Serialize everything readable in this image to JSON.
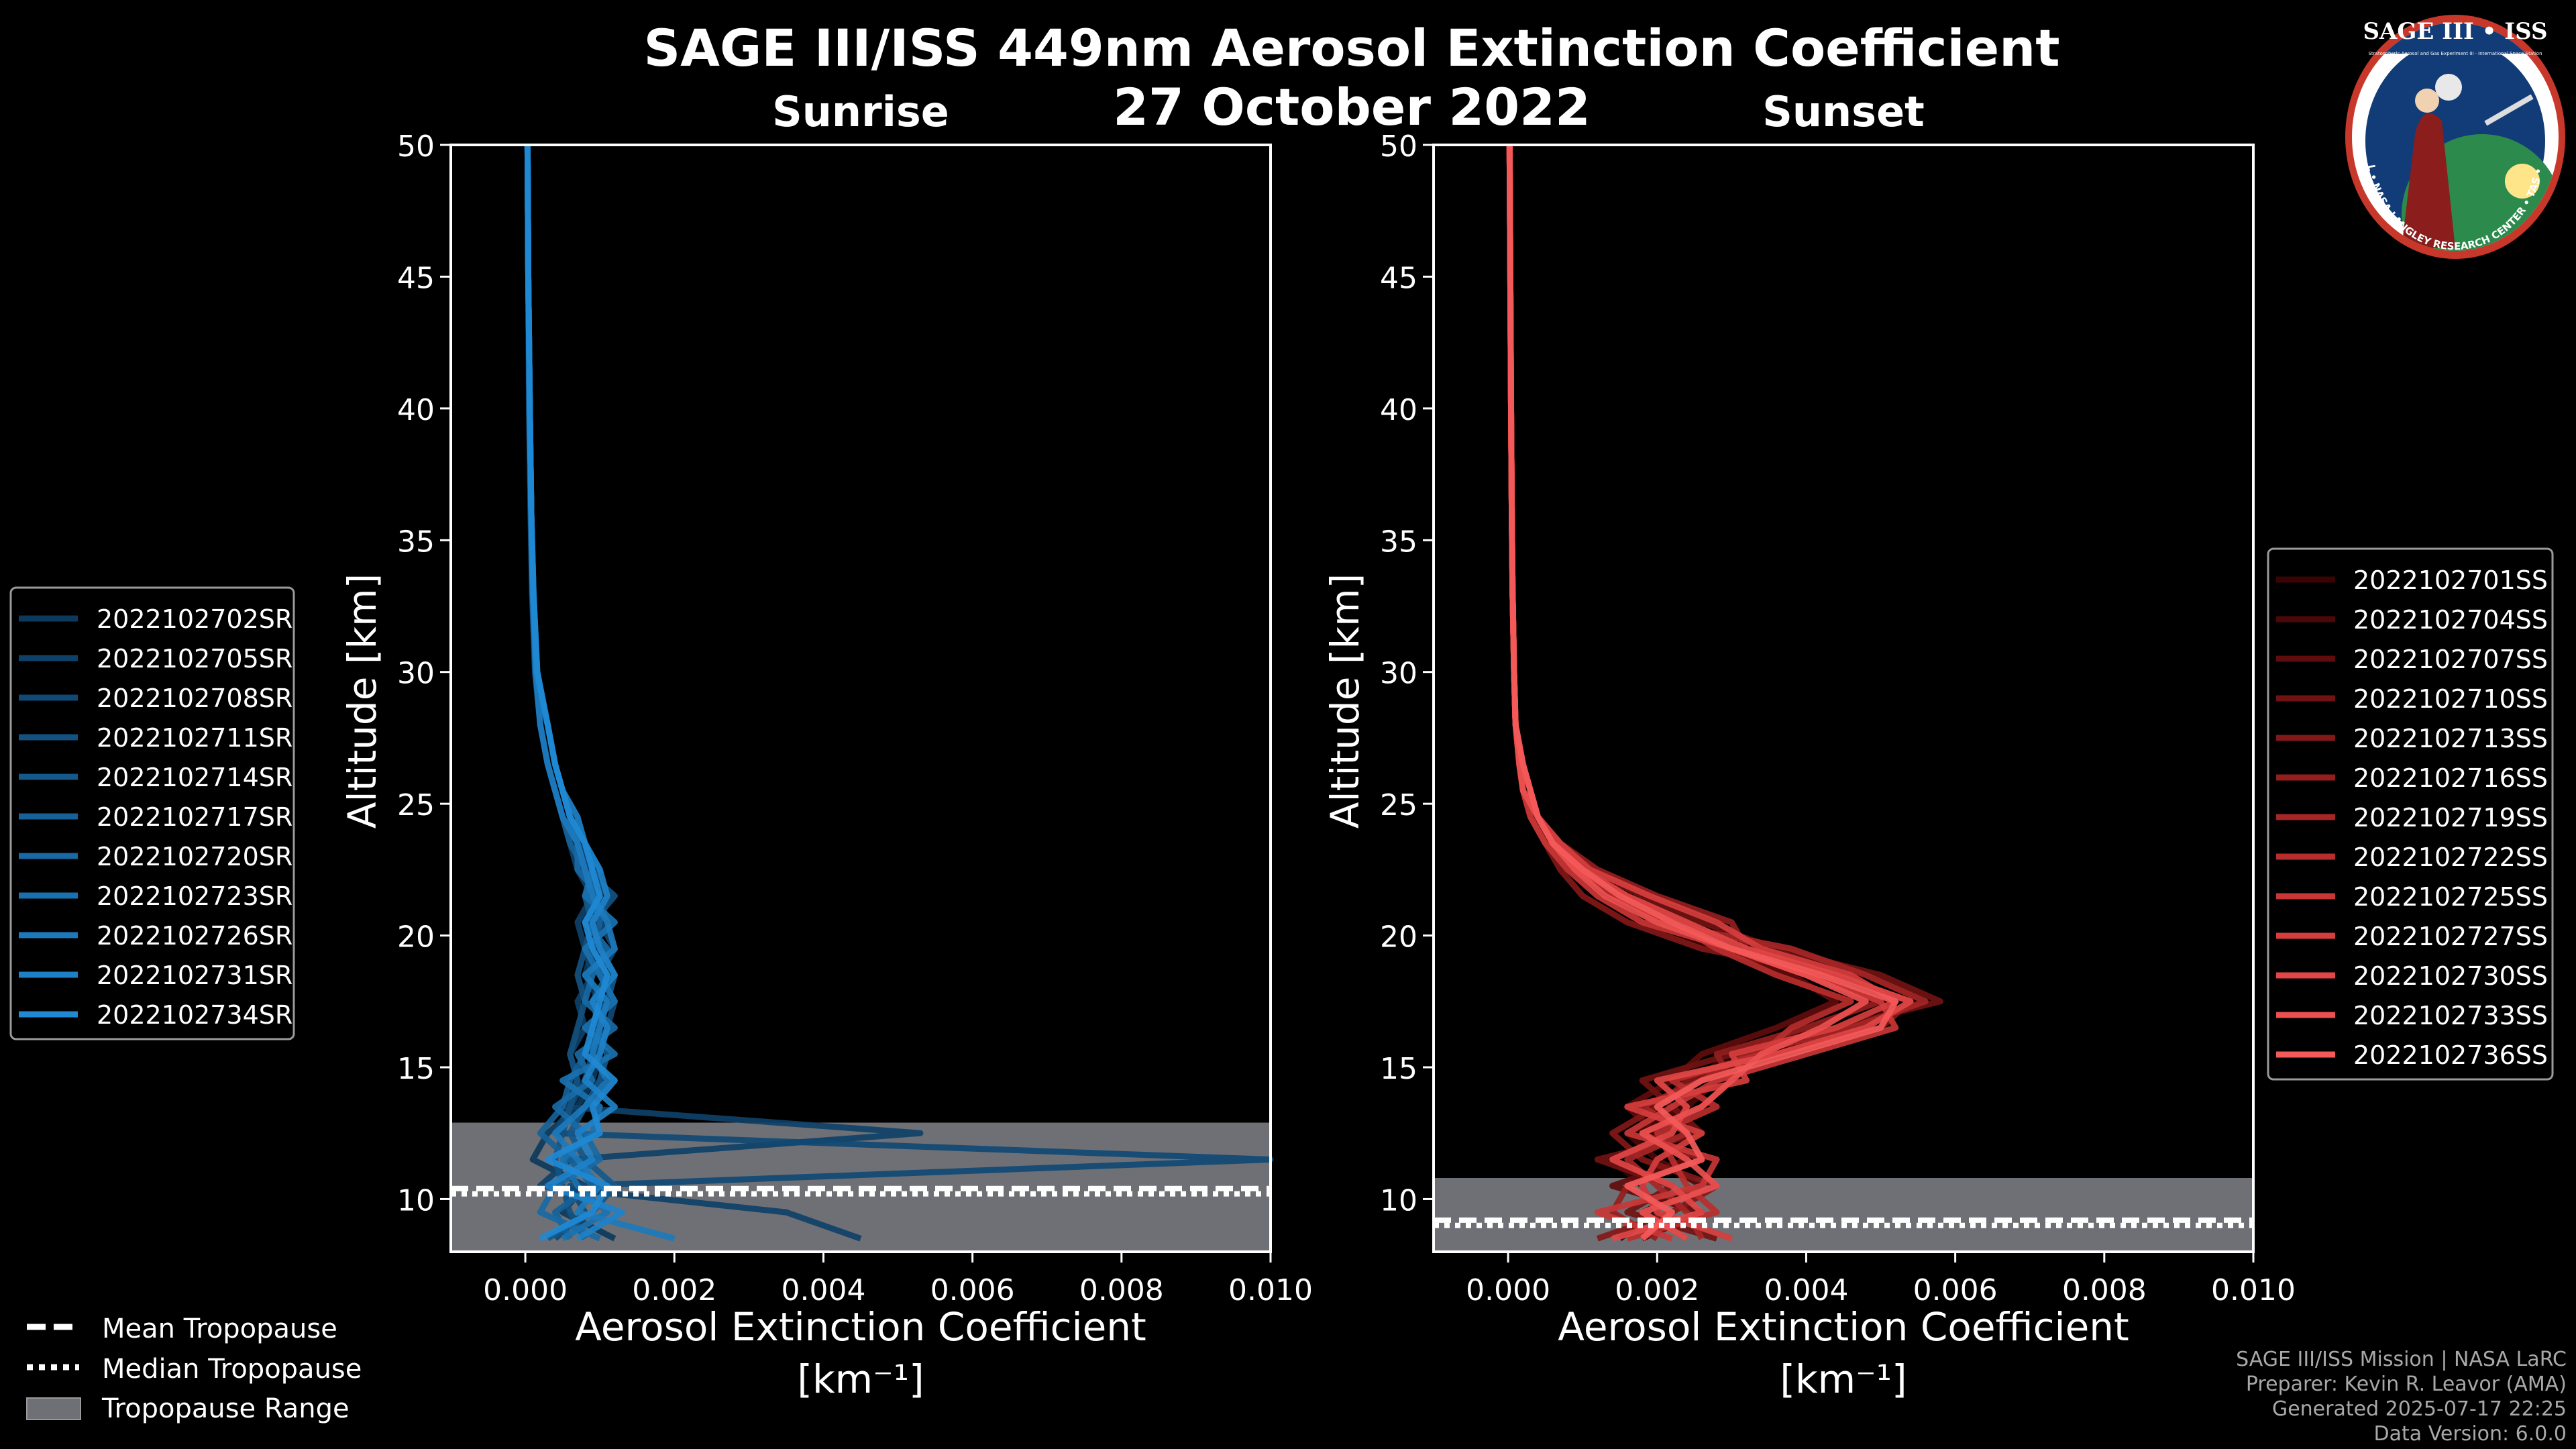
{
  "header": {
    "title": "SAGE III/ISS 449nm Aerosol Extinction Coefficient",
    "date": "27 October 2022"
  },
  "badge": {
    "name": "SAGE III • ISS",
    "ring_text": "BALL • NASA LANGLEY RESEARCH CENTER • TAS • ESA",
    "small_text": "Stratospheric Aerosol and Gas Experiment III · International Space Station"
  },
  "footer": {
    "line1": "SAGE III/ISS Mission | NASA LaRC",
    "line2": "Preparer: Kevin R. Leavor (AMA)",
    "line3": "Generated 2025-07-17 22:25",
    "line4": "Data Version: 6.0.0"
  },
  "tropopause_legend": [
    {
      "label": "Mean Tropopause",
      "style": "dashed"
    },
    {
      "label": "Median Tropopause",
      "style": "dotted"
    },
    {
      "label": "Tropopause Range",
      "style": "patch"
    }
  ],
  "colors": {
    "background": "#000000",
    "tropopause_range": "#6e7075",
    "sunrise_series": [
      "#0c3a5c",
      "#0e4168",
      "#104974",
      "#125180",
      "#14598c",
      "#166198",
      "#1869a4",
      "#1a71b0",
      "#1c79bc",
      "#1e81c8",
      "#2089d4"
    ],
    "sunset_series": [
      "#3a0404",
      "#4c0808",
      "#5e0c0c",
      "#701212",
      "#821818",
      "#941e1e",
      "#a62626",
      "#b82e2e",
      "#c83636",
      "#d63e3e",
      "#e24646",
      "#ec5050",
      "#f45a5a"
    ]
  },
  "chart_data": [
    {
      "type": "line",
      "title": "Sunrise",
      "xlabel": "Aerosol Extinction Coefficient",
      "xunit": "[km⁻¹]",
      "ylabel": "Altitude [km]",
      "xlim": [
        -0.001,
        0.01
      ],
      "ylim": [
        8,
        50
      ],
      "xticks": [
        "0.000",
        "0.002",
        "0.004",
        "0.006",
        "0.008",
        "0.010"
      ],
      "xtick_values": [
        0,
        0.002,
        0.004,
        0.006,
        0.008,
        0.01
      ],
      "yticks": [
        10,
        15,
        20,
        25,
        30,
        35,
        40,
        45,
        50
      ],
      "tropopause": {
        "mean": 10.4,
        "median": 10.2,
        "range": [
          8,
          12.9
        ]
      },
      "legend_position": "left",
      "altitudes": [
        8.5,
        9.5,
        10.5,
        11.5,
        12.5,
        13.5,
        14.5,
        15.5,
        16.5,
        17.5,
        18.5,
        19.5,
        20.5,
        21.5,
        22.5,
        23.5,
        24.5,
        25.5,
        26.5,
        28,
        30,
        33,
        36,
        40,
        45,
        50
      ],
      "series": [
        {
          "name": "2022102702SR",
          "values": [
            0.0012,
            0.0005,
            0.0008,
            0.0001,
            0.0003,
            0.0007,
            0.0009,
            0.001,
            0.0009,
            0.001,
            0.0008,
            0.0009,
            0.0011,
            0.001,
            0.0009,
            0.0008,
            0.0006,
            0.0005,
            0.0004,
            0.0003,
            0.00015,
            0.0001,
            8e-05,
            6e-05,
            4e-05,
            3e-05
          ]
        },
        {
          "name": "2022102705SR",
          "values": [
            0.0045,
            0.0035,
            0.0002,
            0.0006,
            0.0053,
            0.0005,
            0.0007,
            0.0006,
            0.0008,
            0.0007,
            0.0009,
            0.0008,
            0.0007,
            0.0009,
            0.0007,
            0.0006,
            0.0005,
            0.0004,
            0.0003,
            0.0002,
            0.00014,
            0.0001,
            8e-05,
            6e-05,
            4e-05,
            3e-05
          ]
        },
        {
          "name": "2022102708SR",
          "values": [
            0.0004,
            0.0008,
            0.0006,
            0.01,
            0.0004,
            0.0006,
            0.0008,
            0.0009,
            0.0011,
            0.0012,
            0.001,
            0.0012,
            0.001,
            0.0011,
            0.0009,
            0.0007,
            0.0006,
            0.0005,
            0.0004,
            0.0003,
            0.00015,
            0.0001,
            8e-05,
            6e-05,
            4e-05,
            3e-05
          ]
        },
        {
          "name": "2022102711SR",
          "values": [
            0.0008,
            0.0006,
            0.0005,
            0.0004,
            0.0005,
            0.0006,
            0.0007,
            0.0006,
            0.0007,
            0.0008,
            0.0007,
            0.0008,
            0.0009,
            0.0012,
            0.0008,
            0.0007,
            0.0005,
            0.0004,
            0.0003,
            0.0002,
            0.00013,
            9e-05,
            7e-05,
            5e-05,
            4e-05,
            3e-05
          ]
        },
        {
          "name": "2022102714SR",
          "values": [
            0.0003,
            0.0009,
            0.0012,
            0.0008,
            0.0006,
            0.0008,
            0.001,
            0.0011,
            0.0009,
            0.0011,
            0.0012,
            0.001,
            0.0009,
            0.0008,
            0.001,
            0.0008,
            0.0006,
            0.0005,
            0.0004,
            0.0003,
            0.00016,
            0.00011,
            8e-05,
            6e-05,
            4e-05,
            3e-05
          ]
        },
        {
          "name": "2022102717SR",
          "values": [
            0.0006,
            0.0004,
            0.0009,
            0.0006,
            0.0002,
            0.0005,
            0.0006,
            0.0008,
            0.001,
            0.0009,
            0.0011,
            0.0009,
            0.001,
            0.0009,
            0.0008,
            0.0006,
            0.0005,
            0.0004,
            0.0003,
            0.0002,
            0.00014,
            0.0001,
            8e-05,
            6e-05,
            4e-05,
            3e-05
          ]
        },
        {
          "name": "2022102720SR",
          "values": [
            0.001,
            0.0002,
            0.0004,
            0.001,
            0.0008,
            0.0004,
            0.0009,
            0.0007,
            0.0012,
            0.0008,
            0.0009,
            0.0011,
            0.0008,
            0.001,
            0.0007,
            0.0007,
            0.0006,
            0.0005,
            0.0004,
            0.0003,
            0.00015,
            0.0001,
            8e-05,
            6e-05,
            4e-05,
            3e-05
          ]
        },
        {
          "name": "2022102723SR",
          "values": [
            0.0005,
            0.0011,
            0.0007,
            0.0005,
            0.0009,
            0.001,
            0.0005,
            0.0012,
            0.0008,
            0.0012,
            0.001,
            0.0008,
            0.0012,
            0.0008,
            0.0009,
            0.0008,
            0.0006,
            0.0005,
            0.0004,
            0.0003,
            0.00016,
            0.00011,
            8e-05,
            6e-05,
            4e-05,
            3e-05
          ]
        },
        {
          "name": "2022102726SR",
          "values": [
            0.002,
            0.0007,
            0.001,
            0.0007,
            0.0004,
            0.0008,
            0.0011,
            0.0009,
            0.001,
            0.0011,
            0.0008,
            0.0012,
            0.0011,
            0.0009,
            0.0008,
            0.0007,
            0.0005,
            0.0004,
            0.0003,
            0.0002,
            0.00014,
            0.0001,
            8e-05,
            6e-05,
            4e-05,
            3e-05
          ]
        },
        {
          "name": "2022102731SR",
          "values": [
            0.0007,
            0.0013,
            0.0003,
            0.0009,
            0.0007,
            0.0012,
            0.0008,
            0.001,
            0.0011,
            0.0009,
            0.0012,
            0.001,
            0.0009,
            0.0011,
            0.001,
            0.0008,
            0.0007,
            0.0005,
            0.0004,
            0.0003,
            0.00015,
            0.0001,
            8e-05,
            6e-05,
            4e-05,
            3e-05
          ]
        },
        {
          "name": "2022102734SR",
          "values": [
            0.0002,
            0.0009,
            0.0011,
            0.0003,
            0.001,
            0.0009,
            0.0012,
            0.0008,
            0.0009,
            0.001,
            0.0011,
            0.0009,
            0.0008,
            0.001,
            0.0009,
            0.0008,
            0.0006,
            0.0005,
            0.0004,
            0.0003,
            0.00016,
            0.00011,
            8e-05,
            6e-05,
            4e-05,
            3e-05
          ]
        }
      ]
    },
    {
      "type": "line",
      "title": "Sunset",
      "xlabel": "Aerosol Extinction Coefficient",
      "xunit": "[km⁻¹]",
      "ylabel": "Altitude [km]",
      "xlim": [
        -0.001,
        0.01
      ],
      "ylim": [
        8,
        50
      ],
      "xticks": [
        "0.000",
        "0.002",
        "0.004",
        "0.006",
        "0.008",
        "0.010"
      ],
      "xtick_values": [
        0,
        0.002,
        0.004,
        0.006,
        0.008,
        0.01
      ],
      "yticks": [
        10,
        15,
        20,
        25,
        30,
        35,
        40,
        45,
        50
      ],
      "tropopause": {
        "mean": 9.2,
        "median": 9.0,
        "range": [
          8,
          10.8
        ]
      },
      "legend_position": "right",
      "altitudes": [
        8.5,
        9.5,
        10.5,
        11.5,
        12.5,
        13.5,
        14.5,
        15.5,
        16.5,
        17.5,
        18.5,
        19.5,
        20.5,
        21.5,
        22.5,
        23.5,
        24.5,
        25.5,
        26.5,
        28,
        30,
        33,
        36,
        40,
        45,
        50
      ],
      "series": [
        {
          "name": "2022102701SS",
          "values": [
            0.0015,
            0.002,
            0.0018,
            0.0014,
            0.0022,
            0.0019,
            0.0025,
            0.003,
            0.0042,
            0.0048,
            0.004,
            0.0028,
            0.0018,
            0.0012,
            0.0008,
            0.0005,
            0.0003,
            0.0002,
            0.00015,
            0.0001,
            8e-05,
            6e-05,
            5e-05,
            4e-05,
            3e-05,
            2e-05
          ]
        },
        {
          "name": "2022102704SS",
          "values": [
            0.0024,
            0.0018,
            0.0026,
            0.002,
            0.0016,
            0.0024,
            0.0028,
            0.0034,
            0.0048,
            0.0052,
            0.0046,
            0.0034,
            0.0022,
            0.0014,
            0.0009,
            0.0006,
            0.0004,
            0.0002,
            0.00015,
            0.0001,
            8e-05,
            6e-05,
            5e-05,
            4e-05,
            3e-05,
            2e-05
          ]
        },
        {
          "name": "2022102707SS",
          "values": [
            0.0018,
            0.0026,
            0.0014,
            0.0024,
            0.002,
            0.0016,
            0.0022,
            0.0026,
            0.0036,
            0.0044,
            0.0038,
            0.003,
            0.0024,
            0.0016,
            0.001,
            0.0006,
            0.0004,
            0.0003,
            0.0002,
            0.0001,
            8e-05,
            6e-05,
            5e-05,
            4e-05,
            3e-05,
            2e-05
          ]
        },
        {
          "name": "2022102710SS",
          "values": [
            0.0028,
            0.0016,
            0.0022,
            0.0012,
            0.0026,
            0.0022,
            0.0018,
            0.003,
            0.0044,
            0.0058,
            0.005,
            0.0036,
            0.0026,
            0.0018,
            0.0011,
            0.0007,
            0.0004,
            0.0003,
            0.0002,
            0.0001,
            8e-05,
            6e-05,
            5e-05,
            4e-05,
            3e-05,
            2e-05
          ]
        },
        {
          "name": "2022102713SS",
          "values": [
            0.0012,
            0.0022,
            0.0028,
            0.0018,
            0.0014,
            0.002,
            0.0024,
            0.0036,
            0.005,
            0.0054,
            0.0044,
            0.0026,
            0.0016,
            0.001,
            0.0007,
            0.0005,
            0.0003,
            0.0002,
            0.00015,
            0.0001,
            8e-05,
            6e-05,
            5e-05,
            4e-05,
            3e-05,
            2e-05
          ]
        },
        {
          "name": "2022102716SS",
          "values": [
            0.002,
            0.0014,
            0.0016,
            0.0026,
            0.0018,
            0.0026,
            0.003,
            0.0028,
            0.004,
            0.005,
            0.0042,
            0.0032,
            0.003,
            0.002,
            0.0012,
            0.0007,
            0.0004,
            0.0003,
            0.0002,
            0.0001,
            8e-05,
            6e-05,
            5e-05,
            4e-05,
            3e-05,
            2e-05
          ]
        },
        {
          "name": "2022102719SS",
          "values": [
            0.0026,
            0.0024,
            0.002,
            0.0016,
            0.0024,
            0.0018,
            0.0026,
            0.0032,
            0.0046,
            0.0056,
            0.0048,
            0.0038,
            0.002,
            0.0015,
            0.001,
            0.0006,
            0.0004,
            0.0003,
            0.0002,
            0.0001,
            8e-05,
            6e-05,
            5e-05,
            4e-05,
            3e-05,
            2e-05
          ]
        },
        {
          "name": "2022102722SS",
          "values": [
            0.0016,
            0.0028,
            0.0024,
            0.0022,
            0.002,
            0.0028,
            0.0022,
            0.0034,
            0.0038,
            0.0046,
            0.0036,
            0.0028,
            0.0022,
            0.0014,
            0.0009,
            0.0006,
            0.0004,
            0.0002,
            0.00015,
            0.0001,
            8e-05,
            6e-05,
            5e-05,
            4e-05,
            3e-05,
            2e-05
          ]
        },
        {
          "name": "2022102725SS",
          "values": [
            0.0022,
            0.0012,
            0.0026,
            0.0028,
            0.0016,
            0.0022,
            0.0028,
            0.004,
            0.0052,
            0.005,
            0.004,
            0.003,
            0.0018,
            0.0012,
            0.0008,
            0.0005,
            0.0003,
            0.0002,
            0.00015,
            0.0001,
            8e-05,
            6e-05,
            5e-05,
            4e-05,
            3e-05,
            2e-05
          ]
        },
        {
          "name": "2022102727SS",
          "values": [
            0.003,
            0.002,
            0.0018,
            0.002,
            0.0026,
            0.0016,
            0.0032,
            0.003,
            0.0044,
            0.0052,
            0.0046,
            0.0034,
            0.0028,
            0.0019,
            0.0011,
            0.0007,
            0.0004,
            0.0003,
            0.0002,
            0.0001,
            8e-05,
            6e-05,
            5e-05,
            4e-05,
            3e-05,
            2e-05
          ]
        },
        {
          "name": "2022102730SS",
          "values": [
            0.0014,
            0.0026,
            0.0022,
            0.0014,
            0.0022,
            0.0024,
            0.002,
            0.0036,
            0.0048,
            0.0054,
            0.0044,
            0.0032,
            0.0024,
            0.0016,
            0.001,
            0.0006,
            0.0004,
            0.0003,
            0.0002,
            0.0001,
            8e-05,
            6e-05,
            5e-05,
            4e-05,
            3e-05,
            2e-05
          ]
        },
        {
          "name": "2022102733SS",
          "values": [
            0.0024,
            0.0018,
            0.0028,
            0.0024,
            0.0018,
            0.0026,
            0.003,
            0.0034,
            0.0042,
            0.0048,
            0.004,
            0.003,
            0.002,
            0.0013,
            0.0009,
            0.0006,
            0.0004,
            0.0002,
            0.00015,
            0.0001,
            8e-05,
            6e-05,
            5e-05,
            4e-05,
            3e-05,
            2e-05
          ]
        },
        {
          "name": "2022102736SS",
          "values": [
            0.0018,
            0.0022,
            0.0016,
            0.0026,
            0.0024,
            0.002,
            0.0026,
            0.0038,
            0.005,
            0.0052,
            0.0042,
            0.003,
            0.0022,
            0.0015,
            0.001,
            0.0006,
            0.0004,
            0.0003,
            0.0002,
            0.0001,
            8e-05,
            6e-05,
            5e-05,
            4e-05,
            3e-05,
            2e-05
          ]
        }
      ]
    }
  ]
}
